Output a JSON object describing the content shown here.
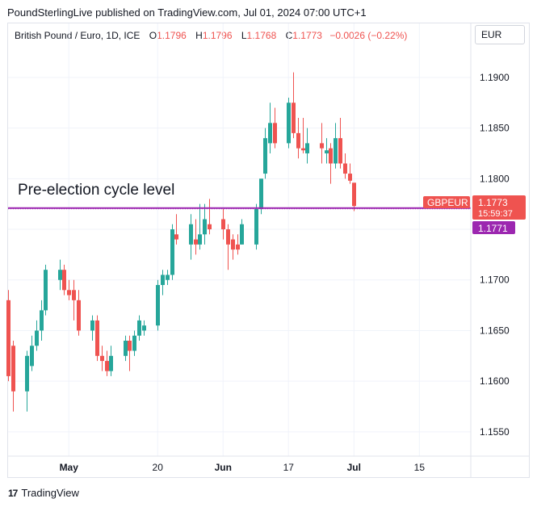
{
  "header": {
    "publisher_line": "PoundSterlingLive published on TradingView.com, Jul 01, 2024 07:00 UTC+1"
  },
  "legend": {
    "symbol": "British Pound / Euro, 1D, ICE",
    "o_label": "O",
    "o_value": "1.1796",
    "h_label": "H",
    "h_value": "1.1796",
    "l_label": "L",
    "l_value": "1.1768",
    "c_label": "C",
    "c_value": "1.1773",
    "change": "−0.0026 (−0.22%)"
  },
  "currency_selector": "EUR",
  "annotation": "Pre-election cycle level",
  "price_tags": {
    "symbol": "GBPEUR",
    "last_price": "1.1773",
    "countdown": "15:59:37",
    "line_price": "1.1771"
  },
  "footer": {
    "brand": "TradingView"
  },
  "colors": {
    "up": "#26a69a",
    "down": "#ef5350",
    "level_line": "#9c27b0"
  },
  "chart_data": {
    "type": "candlestick",
    "y_ticks": [
      "1.1550",
      "1.1600",
      "1.1650",
      "1.1700",
      "1.1750",
      "1.1800",
      "1.1850",
      "1.1900"
    ],
    "ylim": [
      1.1526,
      1.1931
    ],
    "x_ticks": [
      {
        "label": "May",
        "date": "2024-05-01"
      },
      {
        "label": "20",
        "date": "2024-05-20"
      },
      {
        "label": "Jun",
        "date": "2024-06-03"
      },
      {
        "label": "17",
        "date": "2024-06-17"
      },
      {
        "label": "Jul",
        "date": "2024-07-01"
      },
      {
        "label": "15",
        "date": "2024-07-15"
      }
    ],
    "xlim": [
      "2024-04-18",
      "2024-07-26"
    ],
    "level_line": 1.1771,
    "candles": [
      {
        "date": "2024-04-18",
        "o": 1.168,
        "h": 1.169,
        "l": 1.16,
        "c": 1.1605
      },
      {
        "date": "2024-04-19",
        "o": 1.1635,
        "h": 1.164,
        "l": 1.157,
        "c": 1.159
      },
      {
        "date": "2024-04-22",
        "o": 1.159,
        "h": 1.163,
        "l": 1.157,
        "c": 1.1625
      },
      {
        "date": "2024-04-23",
        "o": 1.1615,
        "h": 1.1645,
        "l": 1.161,
        "c": 1.1635
      },
      {
        "date": "2024-04-24",
        "o": 1.1635,
        "h": 1.166,
        "l": 1.163,
        "c": 1.165
      },
      {
        "date": "2024-04-25",
        "o": 1.165,
        "h": 1.168,
        "l": 1.164,
        "c": 1.167
      },
      {
        "date": "2024-04-26",
        "o": 1.167,
        "h": 1.1715,
        "l": 1.1665,
        "c": 1.171
      },
      {
        "date": "2024-04-29",
        "o": 1.17,
        "h": 1.172,
        "l": 1.169,
        "c": 1.171
      },
      {
        "date": "2024-04-30",
        "o": 1.171,
        "h": 1.1715,
        "l": 1.1685,
        "c": 1.169
      },
      {
        "date": "2024-05-01",
        "o": 1.169,
        "h": 1.17,
        "l": 1.168,
        "c": 1.1685
      },
      {
        "date": "2024-05-02",
        "o": 1.169,
        "h": 1.17,
        "l": 1.166,
        "c": 1.168
      },
      {
        "date": "2024-05-03",
        "o": 1.168,
        "h": 1.169,
        "l": 1.1645,
        "c": 1.165
      },
      {
        "date": "2024-05-06",
        "o": 1.165,
        "h": 1.1665,
        "l": 1.164,
        "c": 1.166
      },
      {
        "date": "2024-05-07",
        "o": 1.166,
        "h": 1.1665,
        "l": 1.162,
        "c": 1.1625
      },
      {
        "date": "2024-05-08",
        "o": 1.1625,
        "h": 1.1635,
        "l": 1.161,
        "c": 1.162
      },
      {
        "date": "2024-05-09",
        "o": 1.162,
        "h": 1.163,
        "l": 1.1605,
        "c": 1.161
      },
      {
        "date": "2024-05-10",
        "o": 1.161,
        "h": 1.1635,
        "l": 1.1605,
        "c": 1.1625
      },
      {
        "date": "2024-05-13",
        "o": 1.1625,
        "h": 1.1645,
        "l": 1.162,
        "c": 1.164
      },
      {
        "date": "2024-05-14",
        "o": 1.164,
        "h": 1.1645,
        "l": 1.161,
        "c": 1.163
      },
      {
        "date": "2024-05-15",
        "o": 1.163,
        "h": 1.165,
        "l": 1.1625,
        "c": 1.1645
      },
      {
        "date": "2024-05-16",
        "o": 1.1645,
        "h": 1.1665,
        "l": 1.164,
        "c": 1.166
      },
      {
        "date": "2024-05-17",
        "o": 1.165,
        "h": 1.166,
        "l": 1.1645,
        "c": 1.1655
      },
      {
        "date": "2024-05-20",
        "o": 1.1655,
        "h": 1.17,
        "l": 1.165,
        "c": 1.1695
      },
      {
        "date": "2024-05-21",
        "o": 1.1695,
        "h": 1.171,
        "l": 1.1685,
        "c": 1.1705
      },
      {
        "date": "2024-05-22",
        "o": 1.17,
        "h": 1.171,
        "l": 1.1695,
        "c": 1.1705
      },
      {
        "date": "2024-05-23",
        "o": 1.1705,
        "h": 1.1755,
        "l": 1.17,
        "c": 1.175
      },
      {
        "date": "2024-05-24",
        "o": 1.1745,
        "h": 1.1765,
        "l": 1.1735,
        "c": 1.174
      },
      {
        "date": "2024-05-27",
        "o": 1.1735,
        "h": 1.1765,
        "l": 1.172,
        "c": 1.1755
      },
      {
        "date": "2024-05-28",
        "o": 1.174,
        "h": 1.176,
        "l": 1.1725,
        "c": 1.1735
      },
      {
        "date": "2024-05-29",
        "o": 1.1735,
        "h": 1.1775,
        "l": 1.173,
        "c": 1.1745
      },
      {
        "date": "2024-05-30",
        "o": 1.1745,
        "h": 1.1775,
        "l": 1.1735,
        "c": 1.176
      },
      {
        "date": "2024-05-31",
        "o": 1.1755,
        "h": 1.178,
        "l": 1.1745,
        "c": 1.175
      },
      {
        "date": "2024-06-03",
        "o": 1.176,
        "h": 1.177,
        "l": 1.174,
        "c": 1.175
      },
      {
        "date": "2024-06-04",
        "o": 1.175,
        "h": 1.1755,
        "l": 1.171,
        "c": 1.1735
      },
      {
        "date": "2024-06-05",
        "o": 1.174,
        "h": 1.1745,
        "l": 1.172,
        "c": 1.173
      },
      {
        "date": "2024-06-06",
        "o": 1.1735,
        "h": 1.1745,
        "l": 1.1725,
        "c": 1.173
      },
      {
        "date": "2024-06-07",
        "o": 1.1735,
        "h": 1.176,
        "l": 1.1735,
        "c": 1.1755
      },
      {
        "date": "2024-06-10",
        "o": 1.1735,
        "h": 1.1775,
        "l": 1.173,
        "c": 1.177
      },
      {
        "date": "2024-06-11",
        "o": 1.177,
        "h": 1.18,
        "l": 1.1765,
        "c": 1.18
      },
      {
        "date": "2024-06-12",
        "o": 1.1805,
        "h": 1.185,
        "l": 1.18,
        "c": 1.184
      },
      {
        "date": "2024-06-13",
        "o": 1.1835,
        "h": 1.1875,
        "l": 1.1825,
        "c": 1.1855
      },
      {
        "date": "2024-06-14",
        "o": 1.1855,
        "h": 1.187,
        "l": 1.183,
        "c": 1.1835
      },
      {
        "date": "2024-06-17",
        "o": 1.1835,
        "h": 1.188,
        "l": 1.183,
        "c": 1.1875
      },
      {
        "date": "2024-06-18",
        "o": 1.1875,
        "h": 1.1905,
        "l": 1.184,
        "c": 1.1845
      },
      {
        "date": "2024-06-19",
        "o": 1.1845,
        "h": 1.186,
        "l": 1.182,
        "c": 1.183
      },
      {
        "date": "2024-06-20",
        "o": 1.183,
        "h": 1.186,
        "l": 1.1825,
        "c": 1.1828
      },
      {
        "date": "2024-06-21",
        "o": 1.1825,
        "h": 1.185,
        "l": 1.1815,
        "c": 1.1835
      },
      {
        "date": "2024-06-24",
        "o": 1.1835,
        "h": 1.1855,
        "l": 1.1815,
        "c": 1.183
      },
      {
        "date": "2024-06-25",
        "o": 1.1825,
        "h": 1.184,
        "l": 1.1815,
        "c": 1.1828
      },
      {
        "date": "2024-06-26",
        "o": 1.183,
        "h": 1.1835,
        "l": 1.1795,
        "c": 1.1815
      },
      {
        "date": "2024-06-27",
        "o": 1.1815,
        "h": 1.1855,
        "l": 1.181,
        "c": 1.184
      },
      {
        "date": "2024-06-28",
        "o": 1.184,
        "h": 1.186,
        "l": 1.181,
        "c": 1.1815
      },
      {
        "date": "2024-06-29",
        "o": 1.1815,
        "h": 1.1825,
        "l": 1.18,
        "c": 1.1805
      },
      {
        "date": "2024-06-30",
        "o": 1.1805,
        "h": 1.1815,
        "l": 1.1795,
        "c": 1.1798
      },
      {
        "date": "2024-07-01",
        "o": 1.1796,
        "h": 1.1796,
        "l": 1.1768,
        "c": 1.1773
      }
    ]
  }
}
